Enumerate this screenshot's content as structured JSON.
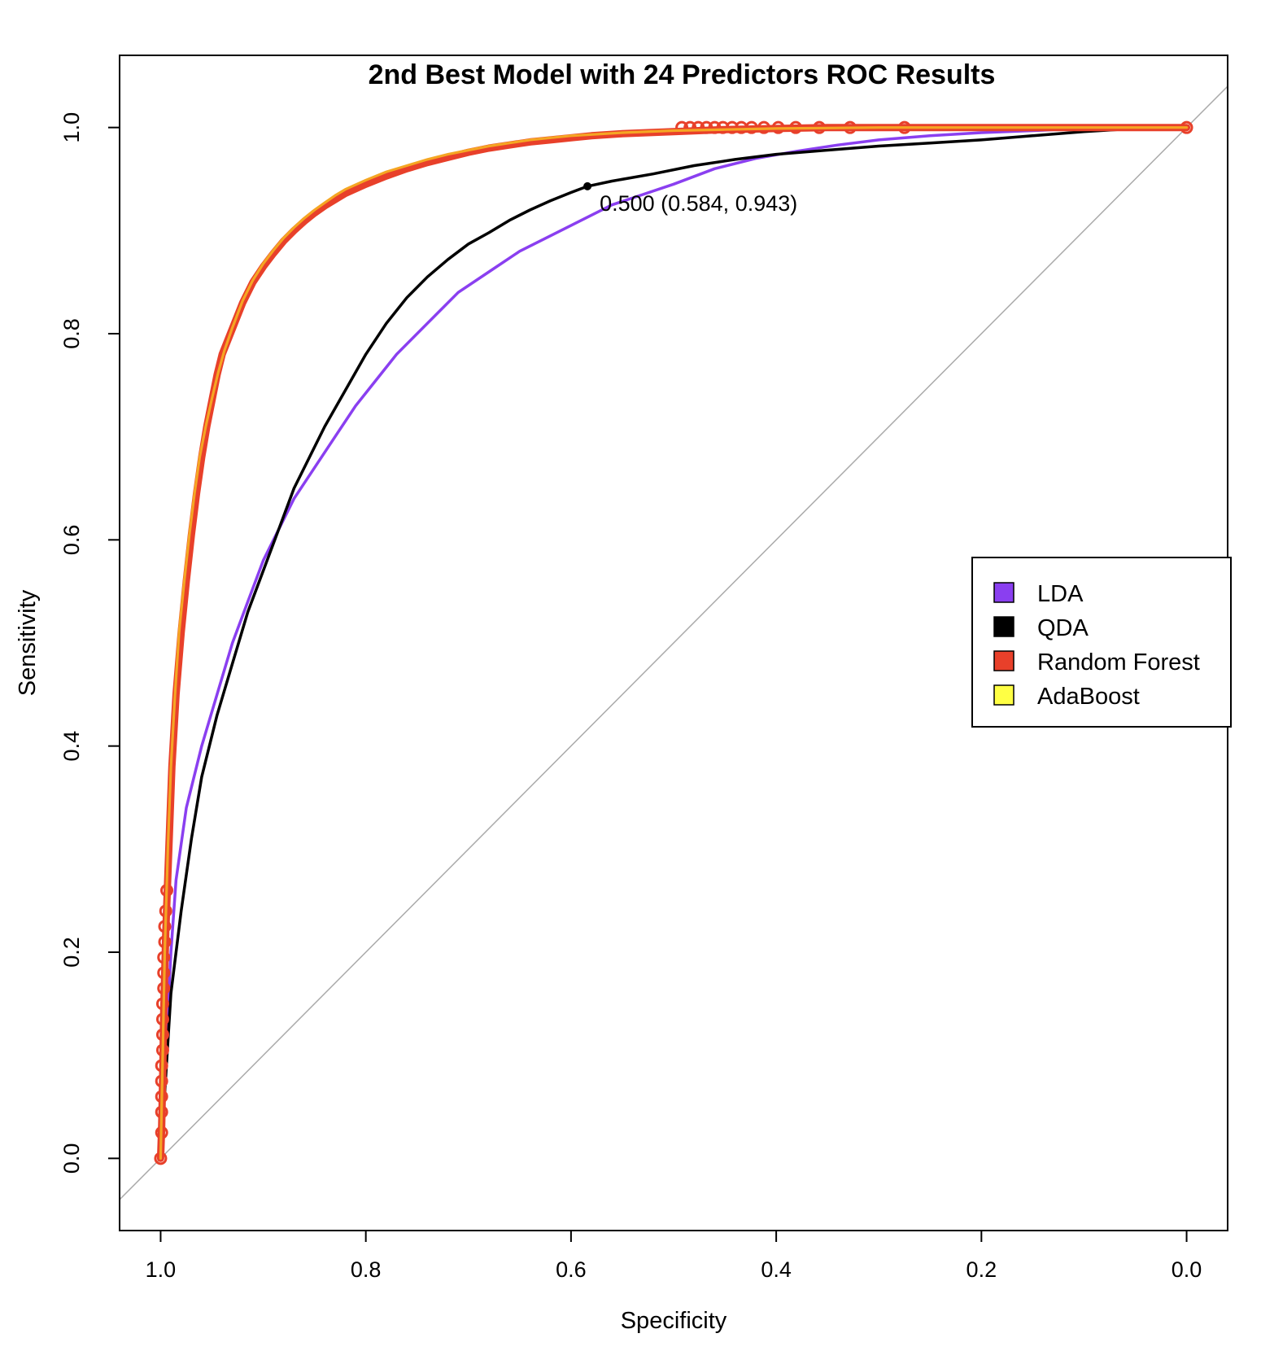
{
  "chart_data": {
    "type": "line",
    "title": "2nd Best Model with 24 Predictors ROC Results",
    "xlabel": "Specificity",
    "ylabel": "Sensitivity",
    "xlim": [
      1.04,
      -0.04
    ],
    "ylim": [
      -0.07,
      1.07
    ],
    "x_reversed": true,
    "xticks": [
      1.0,
      0.8,
      0.6,
      0.4,
      0.2,
      0.0
    ],
    "xtick_labels": [
      "1.0",
      "0.8",
      "0.6",
      "0.4",
      "0.2",
      "0.0"
    ],
    "yticks": [
      0.0,
      0.2,
      0.4,
      0.6,
      0.8,
      1.0
    ],
    "ytick_labels": [
      "0.0",
      "0.2",
      "0.4",
      "0.6",
      "0.8",
      "1.0"
    ],
    "grid": false,
    "legend_position": "right",
    "reference_line": {
      "from": [
        1.0,
        0.0
      ],
      "to": [
        0.0,
        1.0
      ],
      "color": "#aaaaaa"
    },
    "series": [
      {
        "name": "LDA",
        "color": "#8a3ff0",
        "x": [
          1.0,
          0.995,
          0.99,
          0.985,
          0.975,
          0.96,
          0.945,
          0.93,
          0.915,
          0.9,
          0.885,
          0.87,
          0.85,
          0.83,
          0.81,
          0.79,
          0.77,
          0.74,
          0.71,
          0.68,
          0.65,
          0.62,
          0.59,
          0.56,
          0.53,
          0.5,
          0.46,
          0.42,
          0.38,
          0.34,
          0.3,
          0.25,
          0.2,
          0.15,
          0.1,
          0.05,
          0.0
        ],
        "y": [
          0.0,
          0.1,
          0.2,
          0.27,
          0.34,
          0.4,
          0.45,
          0.5,
          0.54,
          0.58,
          0.61,
          0.64,
          0.67,
          0.7,
          0.73,
          0.755,
          0.78,
          0.81,
          0.84,
          0.86,
          0.88,
          0.895,
          0.91,
          0.925,
          0.935,
          0.945,
          0.96,
          0.97,
          0.977,
          0.983,
          0.988,
          0.992,
          0.995,
          0.997,
          0.999,
          1.0,
          1.0
        ]
      },
      {
        "name": "QDA",
        "color": "#000000",
        "x": [
          1.0,
          0.995,
          0.99,
          0.98,
          0.97,
          0.96,
          0.945,
          0.93,
          0.915,
          0.9,
          0.885,
          0.87,
          0.855,
          0.84,
          0.82,
          0.8,
          0.78,
          0.76,
          0.74,
          0.72,
          0.7,
          0.68,
          0.66,
          0.64,
          0.62,
          0.6,
          0.584,
          0.56,
          0.52,
          0.48,
          0.44,
          0.4,
          0.35,
          0.3,
          0.25,
          0.2,
          0.15,
          0.1,
          0.05,
          0.0
        ],
        "y": [
          0.0,
          0.08,
          0.16,
          0.24,
          0.31,
          0.37,
          0.43,
          0.48,
          0.53,
          0.57,
          0.61,
          0.65,
          0.68,
          0.71,
          0.745,
          0.78,
          0.81,
          0.835,
          0.855,
          0.872,
          0.887,
          0.898,
          0.91,
          0.92,
          0.929,
          0.937,
          0.943,
          0.948,
          0.955,
          0.963,
          0.969,
          0.974,
          0.978,
          0.982,
          0.985,
          0.988,
          0.992,
          0.996,
          0.999,
          1.0
        ]
      },
      {
        "name": "Random Forest",
        "color": "#e8402a",
        "x": [
          1.0,
          0.999,
          0.998,
          0.997,
          0.995,
          0.992,
          0.989,
          0.985,
          0.98,
          0.975,
          0.97,
          0.965,
          0.96,
          0.955,
          0.95,
          0.945,
          0.94,
          0.93,
          0.92,
          0.91,
          0.9,
          0.89,
          0.88,
          0.87,
          0.86,
          0.85,
          0.84,
          0.83,
          0.82,
          0.8,
          0.78,
          0.76,
          0.74,
          0.72,
          0.7,
          0.68,
          0.66,
          0.64,
          0.62,
          0.6,
          0.58,
          0.55,
          0.5,
          0.45,
          0.4,
          0.35,
          0.3,
          0.25,
          0.2,
          0.1,
          0.0
        ],
        "y": [
          0.0,
          0.03,
          0.08,
          0.14,
          0.22,
          0.3,
          0.38,
          0.45,
          0.51,
          0.56,
          0.605,
          0.645,
          0.68,
          0.71,
          0.735,
          0.76,
          0.78,
          0.805,
          0.83,
          0.85,
          0.865,
          0.878,
          0.89,
          0.9,
          0.909,
          0.917,
          0.924,
          0.93,
          0.936,
          0.945,
          0.953,
          0.96,
          0.966,
          0.971,
          0.976,
          0.98,
          0.983,
          0.986,
          0.988,
          0.99,
          0.992,
          0.994,
          0.996,
          0.998,
          0.999,
          1.0,
          1.0,
          1.0,
          1.0,
          1.0,
          1.0
        ]
      },
      {
        "name": "AdaBoost",
        "color": "#f5a623",
        "legend_color": "#ffff44",
        "x": [
          1.0,
          0.998,
          0.996,
          0.993,
          0.99,
          0.986,
          0.982,
          0.977,
          0.972,
          0.967,
          0.962,
          0.956,
          0.95,
          0.944,
          0.938,
          0.93,
          0.92,
          0.91,
          0.9,
          0.89,
          0.88,
          0.87,
          0.86,
          0.85,
          0.84,
          0.83,
          0.82,
          0.8,
          0.78,
          0.76,
          0.74,
          0.72,
          0.7,
          0.68,
          0.66,
          0.64,
          0.62,
          0.6,
          0.55,
          0.5,
          0.45,
          0.4,
          0.3,
          0.2,
          0.1,
          0.0
        ],
        "y": [
          0.0,
          0.1,
          0.2,
          0.3,
          0.38,
          0.45,
          0.51,
          0.56,
          0.605,
          0.645,
          0.68,
          0.71,
          0.737,
          0.762,
          0.783,
          0.806,
          0.832,
          0.852,
          0.868,
          0.881,
          0.893,
          0.903,
          0.912,
          0.92,
          0.927,
          0.934,
          0.94,
          0.949,
          0.957,
          0.963,
          0.969,
          0.974,
          0.978,
          0.982,
          0.985,
          0.988,
          0.99,
          0.992,
          0.995,
          0.997,
          0.998,
          0.999,
          1.0,
          1.0,
          1.0,
          1.0
        ]
      }
    ],
    "rf_points": {
      "color": "#e8402a",
      "left_column": {
        "x": [
          1.0,
          0.999,
          0.999,
          0.999,
          0.999,
          0.999,
          0.998,
          0.998,
          0.998,
          0.998,
          0.997,
          0.997,
          0.997,
          0.996,
          0.996,
          0.995,
          0.994
        ],
        "y": [
          0.0,
          0.025,
          0.045,
          0.06,
          0.075,
          0.09,
          0.105,
          0.12,
          0.135,
          0.15,
          0.165,
          0.18,
          0.195,
          0.21,
          0.225,
          0.24,
          0.26
        ]
      },
      "top_row": {
        "x": [
          0.0,
          0.275,
          0.328,
          0.358,
          0.381,
          0.398,
          0.412,
          0.424,
          0.434,
          0.443,
          0.452,
          0.46,
          0.468,
          0.476,
          0.484,
          0.492
        ],
        "y": [
          1.0,
          1.0,
          1.0,
          1.0,
          1.0,
          1.0,
          1.0,
          1.0,
          1.0,
          1.0,
          1.0,
          1.0,
          1.0,
          1.0,
          1.0,
          1.0
        ]
      }
    },
    "annotation": {
      "text": "0.500 (0.584, 0.943)",
      "x": 0.584,
      "y": 0.943,
      "series": "QDA"
    },
    "legend": [
      {
        "label": "LDA",
        "color": "#8a3ff0"
      },
      {
        "label": "QDA",
        "color": "#000000"
      },
      {
        "label": "Random Forest",
        "color": "#e8402a"
      },
      {
        "label": "AdaBoost",
        "color": "#ffff44"
      }
    ]
  }
}
